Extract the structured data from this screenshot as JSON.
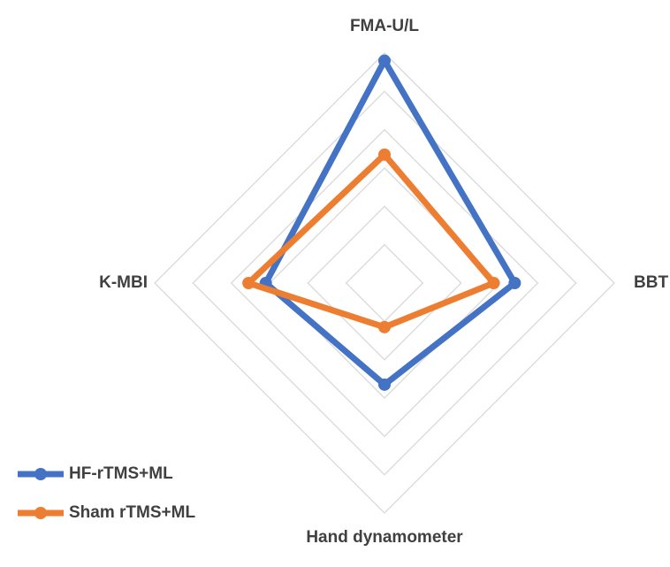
{
  "chart_data": {
    "type": "radar",
    "categories": [
      "FMA-U/L",
      "BBT",
      "Hand dynamometer",
      "K-MBI"
    ],
    "series": [
      {
        "name": "HF-rTMS+ML",
        "color": "#4472c4",
        "values": [
          5.8,
          3.4,
          2.65,
          3.1
        ]
      },
      {
        "name": "Sham rTMS+ML",
        "color": "#ed7d31",
        "values": [
          3.35,
          2.85,
          1.15,
          3.55
        ]
      }
    ],
    "ylim": [
      0,
      6
    ],
    "yticks": [
      1,
      2,
      3,
      4,
      5,
      6
    ],
    "grid": true,
    "legend": "bottom-left"
  }
}
